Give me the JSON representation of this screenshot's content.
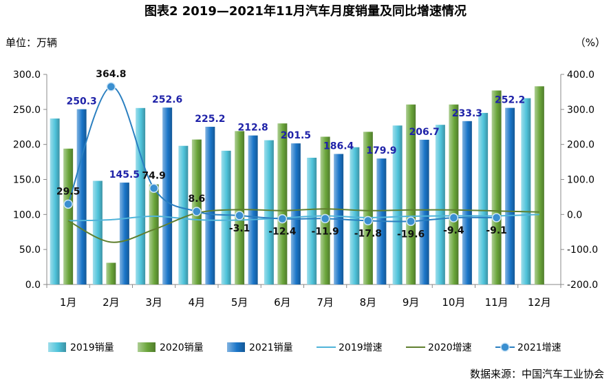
{
  "chart_data": {
    "type": "bar",
    "title": "图表2   2019—2021年11月汽车月度销量及同比增速情况",
    "left_unit": "单位：万辆",
    "right_unit": "（%）",
    "source": "数据来源：中国汽车工业协会",
    "categories": [
      "1月",
      "2月",
      "3月",
      "4月",
      "5月",
      "6月",
      "7月",
      "8月",
      "9月",
      "10月",
      "11月",
      "12月"
    ],
    "ylim": [
      0,
      300
    ],
    "y_ticks": [
      "0.0",
      "50.0",
      "100.0",
      "150.0",
      "200.0",
      "250.0",
      "300.0"
    ],
    "y2lim": [
      -200,
      400
    ],
    "y2_ticks": [
      "-200.0",
      "-100.0",
      "0.0",
      "100.0",
      "200.0",
      "300.0",
      "400.0"
    ],
    "grid": false,
    "legend_position": "bottom",
    "series": [
      {
        "name": "2019销量",
        "kind": "bar",
        "color": "#4fc3da",
        "values": [
          237,
          148,
          252,
          198,
          191,
          206,
          181,
          196,
          227,
          228,
          245,
          266
        ]
      },
      {
        "name": "2020销量",
        "kind": "bar",
        "color": "#6aa53a",
        "values": [
          194,
          31,
          143,
          207,
          219,
          230,
          211,
          218,
          257,
          257,
          277,
          283
        ]
      },
      {
        "name": "2021销量",
        "kind": "bar",
        "color": "#1a75c8",
        "values": [
          250.3,
          145.5,
          252.6,
          225.2,
          212.8,
          201.5,
          186.4,
          179.9,
          206.7,
          233.3,
          252.2,
          null
        ],
        "labels": [
          "250.3",
          "145.5",
          "252.6",
          "225.2",
          "212.8",
          "201.5",
          "186.4",
          "179.9",
          "206.7",
          "233.3",
          "252.2",
          ""
        ]
      },
      {
        "name": "2019增速",
        "kind": "line",
        "color": "#4fb3d9",
        "values": [
          -18,
          -15,
          -5,
          -15,
          -16,
          -10,
          -4,
          -9,
          -5,
          -4,
          -4,
          0
        ]
      },
      {
        "name": "2020增速",
        "kind": "line",
        "color": "#5f7f2e",
        "values": [
          -18,
          -79,
          -43,
          4,
          14,
          11,
          16,
          11,
          13,
          13,
          10,
          7
        ]
      },
      {
        "name": "2021增速",
        "kind": "line",
        "color": "#2a7fc0",
        "values": [
          29.5,
          364.8,
          74.9,
          8.6,
          -3.1,
          -12.4,
          -11.9,
          -17.8,
          -19.6,
          -9.4,
          -9.1,
          null
        ],
        "labels": [
          "29.5",
          "364.8",
          "74.9",
          "8.6",
          "-3.1",
          "-12.4",
          "-11.9",
          "-17.8",
          "-19.6",
          "-9.4",
          "-9.1",
          ""
        ]
      }
    ]
  }
}
